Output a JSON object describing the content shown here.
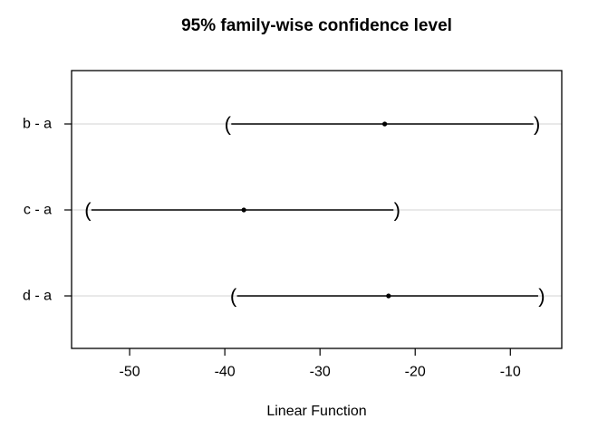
{
  "chart_data": {
    "type": "interval",
    "title": "95% family-wise confidence level",
    "xlabel": "Linear Function",
    "ylabel": "",
    "confidence_level": "95%",
    "categories": [
      "b - a",
      "c - a",
      "d - a"
    ],
    "series": [
      {
        "label": "b - a",
        "estimate": -23.2,
        "lower": -39.7,
        "upper": -7.2
      },
      {
        "label": "c - a",
        "estimate": -38.0,
        "lower": -54.4,
        "upper": -21.9
      },
      {
        "label": "d - a",
        "estimate": -22.8,
        "lower": -39.1,
        "upper": -6.7
      }
    ],
    "xticks": [
      -50,
      -40,
      -30,
      -20,
      -10
    ],
    "xlim": [
      -56.1,
      -4.6
    ],
    "grid": "light-gray-horizontal-line-per-row",
    "legend": "none",
    "endpoint_style": "parentheses",
    "point_style": "filled-circle",
    "colors": {
      "background": "#ffffff",
      "frame": "#000000",
      "interval": "#000000",
      "point": "#000000",
      "gridline": "#d3d3d3",
      "text": "#000000"
    }
  }
}
